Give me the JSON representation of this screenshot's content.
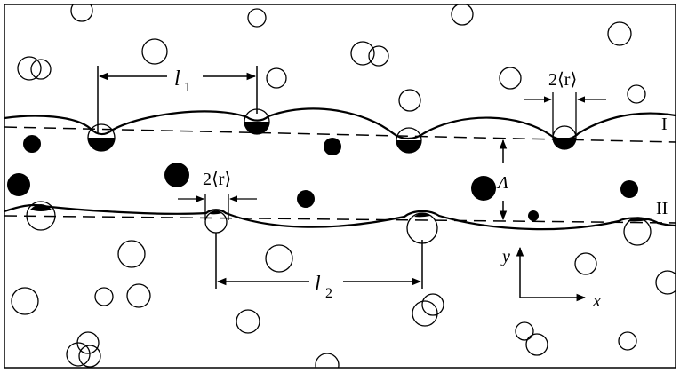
{
  "figure": {
    "labels": {
      "l1": "l",
      "l1_sub": "1",
      "l2": "l",
      "l2_sub": "2",
      "r_top": "2⟨r⟩",
      "r_bottom": "2⟨r⟩",
      "lambda": "Λ",
      "line1": "I",
      "line2": "II",
      "y_axis": "y",
      "x_axis": "x"
    }
  }
}
